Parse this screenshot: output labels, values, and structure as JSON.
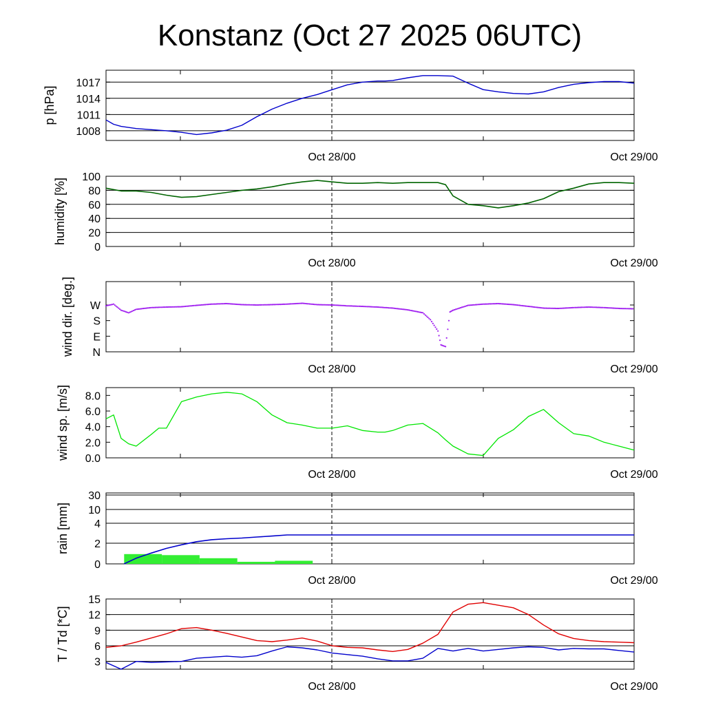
{
  "title": "Konstanz (Oct 27 2025 06UTC)",
  "colors": {
    "pressure": "#0000cc",
    "humidity": "#006400",
    "wind_dir": "#a020f0",
    "wind_speed": "#00e600",
    "rain_cumulative": "#0000cc",
    "rain_bars": "#33ee33",
    "temperature": "#e00000",
    "dewpoint": "#0000cc"
  },
  "chart_data": [
    {
      "type": "line",
      "panel": "pressure",
      "ylabel": "p [hPa]",
      "ylim": [
        1006.2,
        1019.2
      ],
      "yticks": [
        1008,
        1011,
        1014,
        1017
      ],
      "ytick_labels": [
        "1008",
        "1011",
        "1014",
        "1017"
      ],
      "gridlines": [
        1008,
        1011,
        1014,
        1017
      ],
      "x_label_ticks": [
        "Oct 28/00",
        "Oct 29/00"
      ],
      "x": [
        0,
        0.5,
        1,
        2,
        3,
        4,
        5,
        6,
        7,
        8,
        9,
        10,
        11,
        12,
        13,
        14,
        15,
        16,
        17,
        18,
        18.5,
        19,
        20,
        21,
        22,
        23,
        24,
        25,
        26,
        27,
        28,
        29,
        30,
        31,
        32,
        33,
        34,
        35
      ],
      "series": [
        {
          "name": "p",
          "values": [
            1010,
            1009.2,
            1008.8,
            1008.4,
            1008.2,
            1008,
            1007.7,
            1007.3,
            1007.6,
            1008.1,
            1009,
            1010.6,
            1012,
            1013.1,
            1014,
            1014.7,
            1015.6,
            1016.5,
            1017,
            1017.2,
            1017.2,
            1017.3,
            1017.8,
            1018.2,
            1018.2,
            1018.1,
            1016.8,
            1015.6,
            1015.2,
            1014.9,
            1014.8,
            1015.2,
            1016,
            1016.6,
            1016.9,
            1017.1,
            1017.1,
            1016.8
          ]
        }
      ]
    },
    {
      "type": "line",
      "panel": "humidity",
      "ylabel": "humidity [%]",
      "ylim": [
        0,
        100
      ],
      "yticks": [
        0,
        20,
        40,
        60,
        80,
        100
      ],
      "ytick_labels": [
        "0",
        "20",
        "40",
        "60",
        "80",
        "100"
      ],
      "gridlines": [
        20,
        40,
        60,
        80
      ],
      "x_label_ticks": [
        "Oct 28/00",
        "Oct 29/00"
      ],
      "x": [
        0,
        1,
        2,
        3,
        4,
        5,
        6,
        7,
        8,
        9,
        10,
        11,
        12,
        13,
        14,
        15,
        16,
        17,
        18,
        19,
        20,
        21,
        22,
        22.5,
        23,
        24,
        25,
        26,
        27,
        28,
        29,
        30,
        31,
        32,
        33,
        34,
        35
      ],
      "series": [
        {
          "name": "humidity",
          "values": [
            83,
            79,
            79,
            77,
            73,
            70,
            71,
            74,
            77,
            80,
            82,
            85,
            89,
            92,
            94,
            92,
            90,
            90,
            91,
            90,
            91,
            91,
            91,
            88,
            72,
            60,
            58,
            55,
            58,
            62,
            68,
            78,
            83,
            89,
            91,
            91,
            90
          ]
        }
      ]
    },
    {
      "type": "scatter",
      "panel": "wind_direction",
      "ylabel": "wind dir. [deg.]",
      "ylim": [
        0,
        405
      ],
      "yticks": [
        0,
        90,
        180,
        270
      ],
      "ytick_labels": [
        "N",
        "E",
        "S",
        "W"
      ],
      "gridlines": [],
      "x_label_ticks": [
        "Oct 28/00",
        "Oct 29/00"
      ],
      "x": [
        0,
        0.5,
        1,
        1.5,
        2,
        3,
        4,
        5,
        6,
        7,
        8,
        9,
        10,
        11,
        12,
        13,
        14,
        15,
        16,
        17,
        18,
        19,
        20,
        21,
        21.5,
        22,
        22.2,
        22.5,
        22.8,
        23,
        24,
        25,
        26,
        27,
        28,
        29,
        30,
        31,
        32,
        33,
        34,
        35
      ],
      "series": [
        {
          "name": "wind_dir",
          "values": [
            265,
            275,
            240,
            225,
            245,
            255,
            258,
            260,
            268,
            275,
            278,
            272,
            270,
            272,
            275,
            280,
            272,
            270,
            265,
            262,
            258,
            252,
            242,
            225,
            185,
            120,
            40,
            30,
            230,
            240,
            268,
            275,
            278,
            272,
            262,
            252,
            250,
            255,
            258,
            255,
            250,
            248
          ]
        }
      ]
    },
    {
      "type": "line",
      "panel": "wind_speed",
      "ylabel": "wind sp. [m/s]",
      "ylim": [
        0,
        9
      ],
      "yticks": [
        0,
        2,
        4,
        6,
        8
      ],
      "ytick_labels": [
        "0.0",
        "2.0",
        "4.0",
        "6.0",
        "8.0"
      ],
      "gridlines": [],
      "x_label_ticks": [
        "Oct 28/00",
        "Oct 29/00"
      ],
      "x": [
        0,
        0.5,
        1,
        1.5,
        2,
        3,
        3.5,
        4,
        5,
        6,
        7,
        8,
        8.5,
        9,
        10,
        11,
        12,
        13,
        14,
        15,
        16,
        17,
        18,
        18.5,
        19,
        20,
        21,
        22,
        22.5,
        23,
        24,
        25,
        26,
        27,
        28,
        29,
        30,
        31,
        32,
        33,
        34,
        35
      ],
      "series": [
        {
          "name": "wind_speed",
          "values": [
            5,
            5.5,
            2.5,
            1.8,
            1.5,
            3,
            3.8,
            3.8,
            7.2,
            7.8,
            8.2,
            8.4,
            8.3,
            8.2,
            7.2,
            5.5,
            4.5,
            4.2,
            3.8,
            3.8,
            4.1,
            3.5,
            3.3,
            3.3,
            3.5,
            4.2,
            4.4,
            3.2,
            2.3,
            1.5,
            0.5,
            0.3,
            2.5,
            3.6,
            5.3,
            6.2,
            4.5,
            3.1,
            2.8,
            2,
            1.5,
            1
          ]
        }
      ]
    },
    {
      "type": "bar",
      "panel": "rain",
      "ylabel": "rain [mm]",
      "ytick_labels": [
        "0",
        "2",
        "4",
        "10",
        "30"
      ],
      "gridlines": [
        "2",
        "4",
        "10",
        "30"
      ],
      "x_label_ticks": [
        "Oct 28/00",
        "Oct 29/00"
      ],
      "bar_hours": [
        [
          1.2,
          3.7
        ],
        [
          3.7,
          6.2
        ],
        [
          6.2,
          8.7
        ],
        [
          8.7,
          11.2
        ],
        [
          11.2,
          13.7
        ]
      ],
      "bar_values": [
        0.95,
        0.85,
        0.55,
        0.2,
        0.3
      ],
      "cumulative_x": [
        1.2,
        2,
        3,
        4,
        5,
        6,
        7,
        8,
        9,
        10,
        11,
        12,
        35
      ],
      "cumulative_values": [
        0,
        0.55,
        1.05,
        1.5,
        1.85,
        2.15,
        2.35,
        2.45,
        2.52,
        2.62,
        2.72,
        2.83,
        2.83
      ]
    },
    {
      "type": "line",
      "panel": "temperature",
      "ylabel": "T / Td [*C]",
      "ylim": [
        1.5,
        15
      ],
      "yticks": [
        3,
        6,
        9,
        12,
        15
      ],
      "ytick_labels": [
        "3",
        "6",
        "9",
        "12",
        "15"
      ],
      "gridlines": [
        3,
        6,
        9,
        12
      ],
      "x_label_ticks": [
        "Oct 28/00",
        "Oct 29/00"
      ],
      "x": [
        0,
        1,
        2,
        3,
        4,
        5,
        6,
        7,
        8,
        9,
        10,
        11,
        12,
        13,
        14,
        15,
        16,
        17,
        18,
        19,
        20,
        21,
        22,
        23,
        24,
        25,
        26,
        27,
        28,
        29,
        30,
        31,
        32,
        33,
        34,
        35
      ],
      "series": [
        {
          "name": "T",
          "values": [
            5.7,
            6,
            6.7,
            7.5,
            8.3,
            9.3,
            9.5,
            9,
            8.4,
            7.7,
            7,
            6.8,
            7.1,
            7.5,
            6.9,
            6,
            5.7,
            5.6,
            5.2,
            4.9,
            5.3,
            6.5,
            8.2,
            12.5,
            14,
            14.3,
            13.8,
            13.3,
            12,
            10,
            8.3,
            7.4,
            7,
            6.8,
            6.7,
            6.6
          ]
        },
        {
          "name": "Td",
          "values": [
            2.8,
            1.5,
            3,
            2.8,
            2.9,
            3,
            3.6,
            3.8,
            4,
            3.8,
            4.1,
            5,
            5.8,
            5.6,
            5.2,
            4.6,
            4.3,
            4,
            3.5,
            3.1,
            3.1,
            3.6,
            5.5,
            5,
            5.5,
            5,
            5.3,
            5.6,
            5.8,
            5.7,
            5.2,
            5.5,
            5.4,
            5.4,
            5.1,
            4.8
          ]
        }
      ]
    }
  ]
}
